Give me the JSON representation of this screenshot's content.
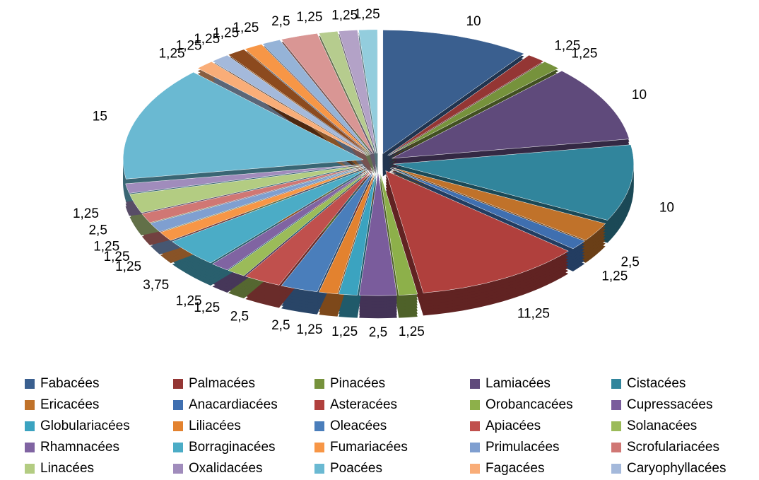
{
  "chart_data": {
    "type": "pie3d",
    "categories": [
      "Fabacées",
      "Palmacées",
      "Pinacées",
      "Lamiacées",
      "Cistacées",
      "Ericacées",
      "Anacardiacées",
      "Asteracées",
      "Orobancacées",
      "Cupressacées",
      "Globulariacées",
      "Liliacées",
      "Oleacées",
      "Apiacées",
      "Solanacées",
      "Rhamnacées",
      "Borraginacées",
      "Fumariacées",
      "Primulacées",
      "Scrofulariacées",
      "Linacées",
      "Oxalidacées",
      "Poacées",
      "Fagacées",
      "Caryophyllacées",
      null,
      null,
      null,
      null,
      null,
      null,
      null
    ],
    "values": [
      10,
      1.25,
      1.25,
      10,
      10,
      2.5,
      1.25,
      11.25,
      1.25,
      2.5,
      1.25,
      1.25,
      2.5,
      2.5,
      1.25,
      1.25,
      3.75,
      1.25,
      1.25,
      1.25,
      2.5,
      1.25,
      15,
      1.25,
      1.25,
      1.25,
      1.25,
      1.25,
      2.5,
      1.25,
      1.25,
      1.25
    ],
    "value_labels": [
      "10",
      "1,25",
      "1,25",
      "10",
      "10",
      "2,5",
      "1,25",
      "11,25",
      "1,25",
      "2,5",
      "1,25",
      "1,25",
      "2,5",
      "2,5",
      "1,25",
      "1,25",
      "3,75",
      "1,25",
      "1,25",
      "1,25",
      "2,5",
      "1,25",
      "15",
      "1,25",
      "1,25",
      "1,25",
      "1,25",
      "1,25",
      "2,5",
      "1,25",
      "1,25",
      "1,25"
    ],
    "colors": [
      "#3a5f8f",
      "#943634",
      "#76923c",
      "#5f4a7b",
      "#31859c",
      "#c0722a",
      "#3f6fb0",
      "#b0403d",
      "#8db04a",
      "#7a5c9c",
      "#3ba3c0",
      "#e3822f",
      "#4a7ebb",
      "#c0504d",
      "#9bbb59",
      "#8064a2",
      "#4bacc6",
      "#f79646",
      "#7f9fd0",
      "#d07774",
      "#b3cc82",
      "#a08cbc",
      "#6ab9d2",
      "#f9ad78",
      "#a4b9db",
      "#8c4a1e",
      "#f79646",
      "#95b3d7",
      "#d99694",
      "#b6cc8e",
      "#b3a2c7",
      "#93cddd"
    ],
    "legend": "bottom"
  }
}
